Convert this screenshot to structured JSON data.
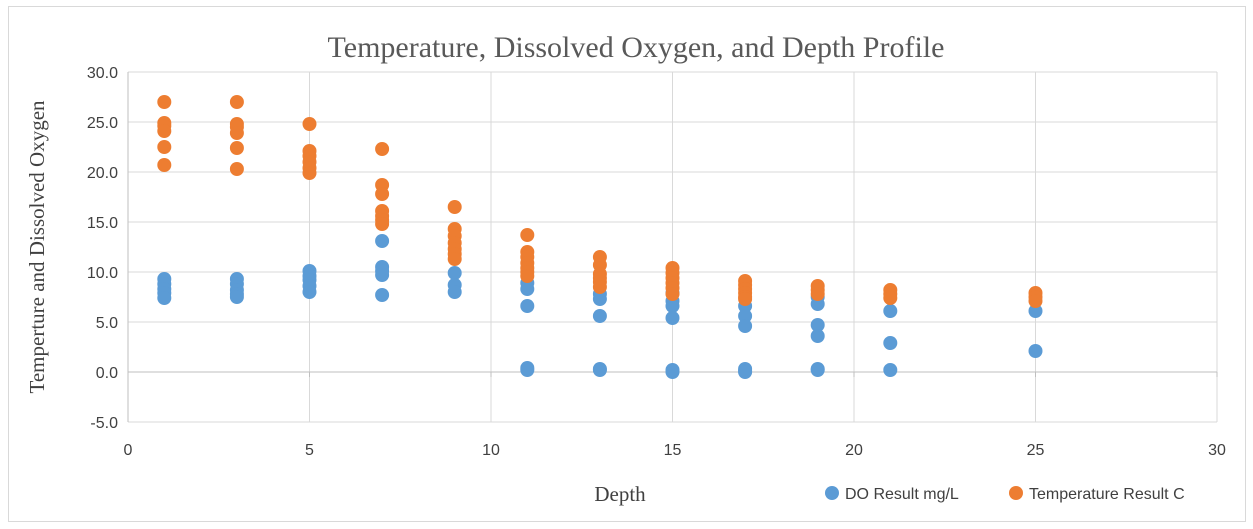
{
  "chart_data": {
    "type": "scatter",
    "title": "Temperature, Dissolved Oxygen, and Depth Profile",
    "xlabel": "Depth",
    "ylabel": "Temperture and Dissolved Oxygen",
    "xlim": [
      0,
      30
    ],
    "ylim": [
      -5,
      30
    ],
    "x_ticks": [
      "0",
      "5",
      "10",
      "15",
      "20",
      "25",
      "30"
    ],
    "y_ticks": [
      "-5.0",
      "0.0",
      "5.0",
      "10.0",
      "15.0",
      "20.0",
      "25.0",
      "30.0"
    ],
    "grid": "vertical and horizontal major gridlines",
    "legend_position": "bottom-right",
    "series": [
      {
        "name": "DO Result mg/L",
        "color": "#5B9BD5",
        "points": [
          [
            1,
            9.3
          ],
          [
            1,
            8.8
          ],
          [
            1,
            8.3
          ],
          [
            1,
            7.9
          ],
          [
            1,
            7.4
          ],
          [
            3,
            9.3
          ],
          [
            3,
            8.8
          ],
          [
            3,
            8.2
          ],
          [
            3,
            7.8
          ],
          [
            3,
            7.5
          ],
          [
            5,
            10.1
          ],
          [
            5,
            9.6
          ],
          [
            5,
            9.2
          ],
          [
            5,
            8.6
          ],
          [
            5,
            8.0
          ],
          [
            7,
            13.1
          ],
          [
            7,
            10.5
          ],
          [
            7,
            10.1
          ],
          [
            7,
            9.7
          ],
          [
            7,
            7.7
          ],
          [
            9,
            9.9
          ],
          [
            9,
            8.7
          ],
          [
            9,
            8.0
          ],
          [
            11,
            8.9
          ],
          [
            11,
            8.3
          ],
          [
            11,
            6.6
          ],
          [
            11,
            0.4
          ],
          [
            11,
            0.2
          ],
          [
            13,
            7.8
          ],
          [
            13,
            7.3
          ],
          [
            13,
            5.6
          ],
          [
            13,
            0.3
          ],
          [
            13,
            0.2
          ],
          [
            15,
            7.9
          ],
          [
            15,
            7.1
          ],
          [
            15,
            6.6
          ],
          [
            15,
            5.4
          ],
          [
            15,
            0.2
          ],
          [
            15,
            0.0
          ],
          [
            17,
            6.6
          ],
          [
            17,
            5.6
          ],
          [
            17,
            4.6
          ],
          [
            17,
            0.3
          ],
          [
            17,
            0.1
          ],
          [
            17,
            0.0
          ],
          [
            19,
            7.5
          ],
          [
            19,
            6.8
          ],
          [
            19,
            4.7
          ],
          [
            19,
            3.6
          ],
          [
            19,
            0.3
          ],
          [
            19,
            0.2
          ],
          [
            21,
            6.1
          ],
          [
            21,
            2.9
          ],
          [
            21,
            0.2
          ],
          [
            25,
            6.1
          ],
          [
            25,
            2.1
          ]
        ]
      },
      {
        "name": "Temperature Result C",
        "color": "#ED7D31",
        "points": [
          [
            1,
            27.0
          ],
          [
            1,
            24.9
          ],
          [
            1,
            24.6
          ],
          [
            1,
            24.1
          ],
          [
            1,
            22.5
          ],
          [
            1,
            20.7
          ],
          [
            3,
            27.0
          ],
          [
            3,
            24.8
          ],
          [
            3,
            24.5
          ],
          [
            3,
            23.9
          ],
          [
            3,
            22.4
          ],
          [
            3,
            20.3
          ],
          [
            5,
            24.8
          ],
          [
            5,
            22.1
          ],
          [
            5,
            21.6
          ],
          [
            5,
            21.0
          ],
          [
            5,
            20.4
          ],
          [
            5,
            19.9
          ],
          [
            7,
            22.3
          ],
          [
            7,
            18.7
          ],
          [
            7,
            17.8
          ],
          [
            7,
            16.1
          ],
          [
            7,
            15.6
          ],
          [
            7,
            15.2
          ],
          [
            7,
            14.8
          ],
          [
            9,
            16.5
          ],
          [
            9,
            14.3
          ],
          [
            9,
            13.6
          ],
          [
            9,
            12.9
          ],
          [
            9,
            12.3
          ],
          [
            9,
            11.8
          ],
          [
            9,
            11.3
          ],
          [
            11,
            13.7
          ],
          [
            11,
            12.0
          ],
          [
            11,
            11.5
          ],
          [
            11,
            10.9
          ],
          [
            11,
            10.4
          ],
          [
            11,
            10.0
          ],
          [
            11,
            9.6
          ],
          [
            13,
            11.5
          ],
          [
            13,
            10.7
          ],
          [
            13,
            9.8
          ],
          [
            13,
            9.4
          ],
          [
            13,
            9.0
          ],
          [
            13,
            8.5
          ],
          [
            15,
            10.4
          ],
          [
            15,
            9.9
          ],
          [
            15,
            9.4
          ],
          [
            15,
            8.9
          ],
          [
            15,
            8.4
          ],
          [
            15,
            7.8
          ],
          [
            17,
            9.1
          ],
          [
            17,
            8.7
          ],
          [
            17,
            8.3
          ],
          [
            17,
            7.9
          ],
          [
            17,
            7.5
          ],
          [
            17,
            7.3
          ],
          [
            19,
            8.6
          ],
          [
            19,
            8.2
          ],
          [
            19,
            7.8
          ],
          [
            21,
            8.2
          ],
          [
            21,
            7.8
          ],
          [
            21,
            7.4
          ],
          [
            25,
            7.9
          ],
          [
            25,
            7.5
          ],
          [
            25,
            7.1
          ]
        ]
      }
    ]
  }
}
